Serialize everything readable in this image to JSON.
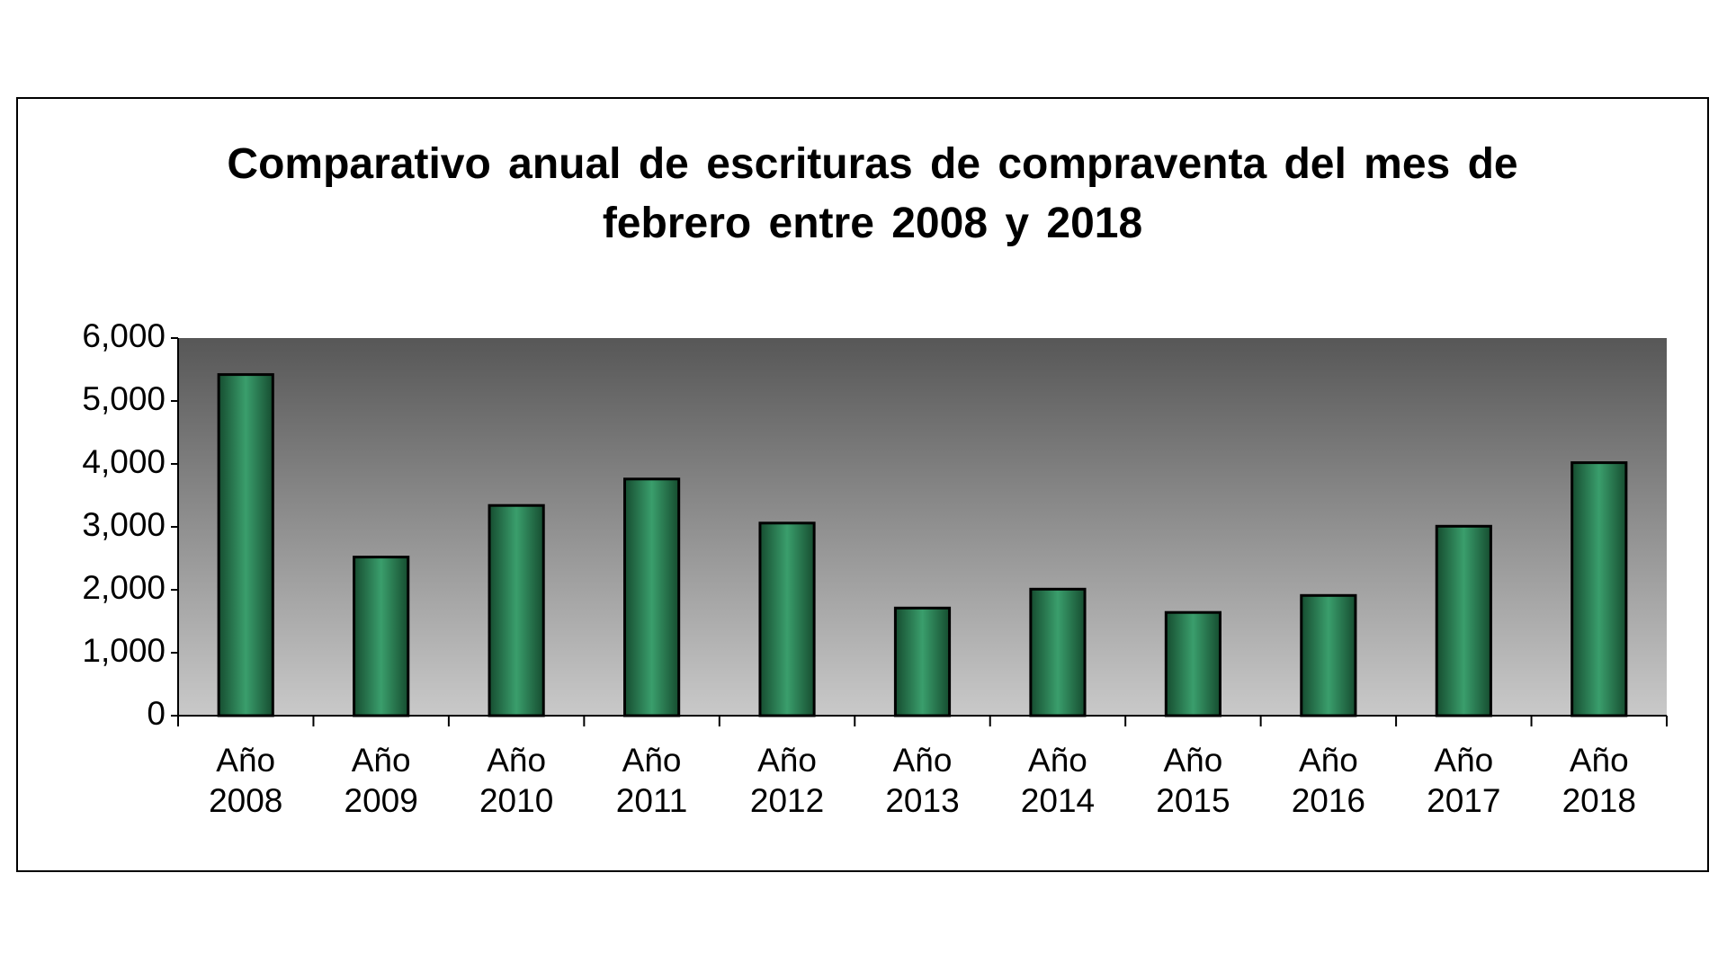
{
  "chart_data": {
    "type": "bar",
    "title": "Comparativo anual de escrituras de compraventa del mes de febrero entre 2008 y 2018",
    "categories": [
      "Año 2008",
      "Año 2009",
      "Año 2010",
      "Año 2011",
      "Año 2012",
      "Año 2013",
      "Año 2014",
      "Año 2015",
      "Año 2016",
      "Año 2017",
      "Año 2018"
    ],
    "values": [
      5420,
      2520,
      3340,
      3760,
      3060,
      1710,
      2010,
      1640,
      1910,
      3010,
      4020
    ],
    "color": "#2e8b57",
    "ylim": [
      0,
      6000
    ],
    "yticks": [
      0,
      {
        "value": 1000,
        "label": "1,000"
      },
      {
        "value": 2000,
        "label": "2,000"
      },
      {
        "value": 3000,
        "label": "3,000"
      },
      {
        "value": 4000,
        "label": "4,000"
      },
      {
        "value": 5000,
        "label": "5,000"
      },
      {
        "value": 6000,
        "label": "6,000"
      }
    ],
    "grid": false
  }
}
